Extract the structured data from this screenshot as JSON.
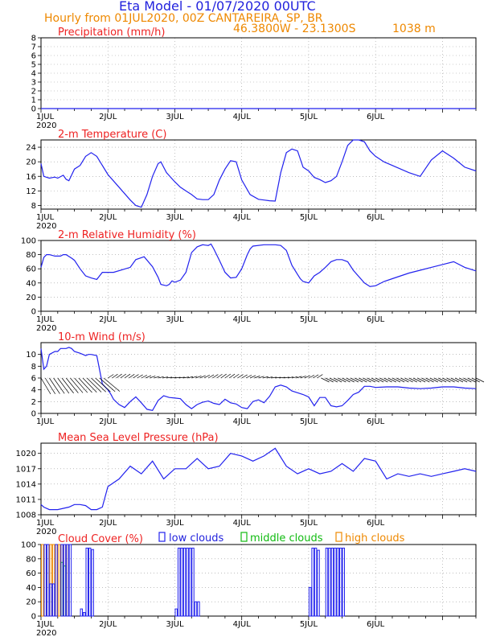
{
  "header": {
    "title": "Eta Model - 01/07/2020 00UTC",
    "subtitle": "Hourly from 01JUL2020, 00Z   CANTAREIRA, SP, BR",
    "coords": "46.3800W - 23.1300S",
    "elevation": "1038  m"
  },
  "x_axis": {
    "day_labels": [
      "1JUL",
      "2JUL",
      "3JUL",
      "4JUL",
      "5JUL",
      "6JUL"
    ],
    "year_label": "2020",
    "hours_total": 156
  },
  "colors": {
    "series": "#2222ee",
    "title": "#ee2222",
    "header_title": "#2222dd",
    "header_sub": "#ee8800",
    "low_clouds": "#2222ee",
    "middle_clouds": "#11bb11",
    "high_clouds": "#ee8800",
    "wind_barb": "#000000"
  },
  "chart_data": [
    {
      "id": "precip",
      "type": "line",
      "title": "Precipitation (mm/h)",
      "ylim": [
        0,
        8
      ],
      "yticks": [
        0,
        1,
        2,
        3,
        4,
        5,
        6,
        7,
        8
      ],
      "x": [
        0,
        156
      ],
      "y": [
        0,
        0
      ]
    },
    {
      "id": "temp",
      "type": "line",
      "title": "2-m Temperature (C)",
      "ylim": [
        7,
        26
      ],
      "yticks": [
        8,
        12,
        16,
        20,
        24
      ],
      "x": [
        0,
        1,
        3,
        5,
        6,
        8,
        9,
        10,
        12,
        14,
        16,
        18,
        20,
        24,
        28,
        32,
        34,
        36,
        38,
        40,
        42,
        43,
        45,
        48,
        50,
        52,
        54,
        56,
        58,
        60,
        62,
        64,
        66,
        68,
        70,
        72,
        75,
        78,
        80,
        82,
        84,
        86,
        88,
        90,
        92,
        94,
        96,
        98,
        100,
        102,
        104,
        106,
        108,
        110,
        112,
        114,
        116,
        118,
        120,
        123,
        126,
        129,
        132,
        136,
        140,
        144,
        148,
        152,
        156
      ],
      "y": [
        19.5,
        16,
        15.5,
        15.8,
        15.5,
        16.3,
        15.2,
        14.8,
        18,
        19,
        21.5,
        22.5,
        21.5,
        16.5,
        13,
        9.5,
        8,
        7.5,
        11,
        16,
        19.5,
        20,
        17,
        14.5,
        13,
        12,
        11,
        9.8,
        9.6,
        9.6,
        11,
        15,
        18,
        20.3,
        20,
        15,
        11,
        9.7,
        9.5,
        9.3,
        9.2,
        17,
        22.5,
        23.5,
        23,
        18.5,
        17.5,
        15.7,
        15.1,
        14.3,
        14.8,
        16,
        20,
        24.5,
        26,
        26,
        25.5,
        23,
        21.5,
        20,
        19,
        18,
        17,
        16,
        20.5,
        23,
        21,
        18.5,
        17.5
      ]
    },
    {
      "id": "rh",
      "type": "line",
      "title": "2-m Relative Humidity (%)",
      "ylim": [
        0,
        100
      ],
      "yticks": [
        0,
        20,
        40,
        60,
        80,
        100
      ],
      "x": [
        0,
        1,
        2,
        3,
        5,
        7,
        8,
        9,
        11,
        12,
        14,
        16,
        18,
        20,
        22,
        26,
        32,
        34,
        37,
        40,
        42,
        43,
        45,
        46,
        47,
        48,
        50,
        52,
        54,
        56,
        58,
        60,
        61,
        62,
        64,
        66,
        68,
        70,
        72,
        74,
        75,
        76,
        80,
        84,
        86,
        88,
        90,
        92,
        93,
        94,
        96,
        98,
        100,
        102,
        104,
        106,
        108,
        110,
        112,
        116,
        118,
        120,
        123,
        126,
        129,
        132,
        136,
        140,
        144,
        148,
        152,
        156
      ],
      "y": [
        62,
        76,
        80,
        80,
        78,
        78,
        80,
        80,
        75,
        72,
        60,
        50,
        47,
        45,
        55,
        55,
        62,
        73,
        77,
        63,
        48,
        38,
        36,
        38,
        43,
        41,
        44,
        55,
        83,
        91,
        94,
        93,
        95,
        88,
        72,
        55,
        47,
        48,
        60,
        80,
        88,
        92,
        94,
        94,
        93,
        86,
        65,
        52,
        46,
        42,
        40,
        50,
        55,
        62,
        70,
        73,
        73,
        70,
        58,
        40,
        35,
        36,
        42,
        46,
        50,
        54,
        58,
        62,
        66,
        70,
        62,
        57
      ]
    },
    {
      "id": "wind",
      "type": "line",
      "title": "10-m Wind (m/s)",
      "ylim": [
        0,
        12
      ],
      "yticks": [
        0,
        2,
        4,
        6,
        8,
        10
      ],
      "x": [
        0,
        1,
        2,
        3,
        5,
        6,
        7,
        8,
        9,
        10,
        11,
        12,
        14,
        16,
        17,
        18,
        20,
        22,
        24,
        25,
        26,
        28,
        30,
        32,
        34,
        36,
        38,
        40,
        42,
        44,
        46,
        48,
        50,
        52,
        54,
        56,
        58,
        60,
        62,
        64,
        66,
        68,
        70,
        72,
        74,
        76,
        78,
        80,
        82,
        84,
        86,
        88,
        90,
        92,
        94,
        96,
        98,
        100,
        102,
        104,
        106,
        108,
        110,
        112,
        114,
        116,
        118,
        120,
        124,
        128,
        132,
        136,
        140,
        144,
        148,
        152,
        156
      ],
      "y": [
        11,
        7.5,
        8,
        10,
        10.5,
        10.5,
        11,
        11,
        11,
        11.2,
        11,
        10.5,
        10.2,
        9.8,
        10,
        10,
        9.8,
        5,
        4,
        3.3,
        2.4,
        1.5,
        1.0,
        2.0,
        2.8,
        1.8,
        0.7,
        0.5,
        2.2,
        3.0,
        2.7,
        2.6,
        2.5,
        1.5,
        0.8,
        1.5,
        1.9,
        2.1,
        1.7,
        1.5,
        2.4,
        1.8,
        1.6,
        1.0,
        0.8,
        2.0,
        2.3,
        1.8,
        2.9,
        4.5,
        4.8,
        4.5,
        3.8,
        3.5,
        3.2,
        2.8,
        1.3,
        2.7,
        2.7,
        1.3,
        1.1,
        1.3,
        2.2,
        3.2,
        3.6,
        4.6,
        4.6,
        4.4,
        4.5,
        4.5,
        4.3,
        4.2,
        4.3,
        4.5,
        4.5,
        4.3,
        4.2
      ]
    },
    {
      "id": "mslp",
      "type": "line",
      "title": "Mean Sea Level Pressure (hPa)",
      "ylim": [
        1008,
        1022
      ],
      "yticks": [
        1008,
        1011,
        1014,
        1017,
        1020
      ],
      "x": [
        0,
        1,
        3,
        6,
        10,
        12,
        14,
        16,
        18,
        20,
        22,
        24,
        28,
        32,
        36,
        40,
        44,
        48,
        52,
        56,
        60,
        64,
        68,
        72,
        76,
        80,
        84,
        88,
        92,
        96,
        100,
        104,
        108,
        112,
        116,
        120,
        124,
        128,
        132,
        136,
        140,
        144,
        148,
        152,
        156
      ],
      "y": [
        1010,
        1009.5,
        1009,
        1009,
        1009.5,
        1010,
        1010,
        1009.8,
        1009,
        1009,
        1009.5,
        1013.5,
        1015,
        1017.5,
        1016,
        1018.5,
        1015,
        1017,
        1017,
        1019,
        1017,
        1017.5,
        1020,
        1019.5,
        1018.5,
        1019.5,
        1021,
        1017.5,
        1016,
        1017,
        1016,
        1016.5,
        1018,
        1016.5,
        1019,
        1018.5,
        1015,
        1016,
        1015.5,
        1016,
        1015.5,
        1016,
        1016.5,
        1017,
        1016.5
      ]
    },
    {
      "id": "cloud",
      "type": "bar",
      "title": "Cloud Cover (%)",
      "ylim": [
        0,
        100
      ],
      "yticks": [
        0,
        20,
        40,
        60,
        80,
        100
      ],
      "legend": [
        "low clouds",
        "middle clouds",
        "high clouds"
      ],
      "low": [
        [
          1,
          100
        ],
        [
          2,
          100
        ],
        [
          3,
          45
        ],
        [
          4,
          45
        ],
        [
          5,
          100
        ],
        [
          7,
          100
        ],
        [
          8,
          100
        ],
        [
          9,
          100
        ],
        [
          10,
          100
        ],
        [
          14,
          10
        ],
        [
          15,
          5
        ],
        [
          16,
          95
        ],
        [
          17,
          95
        ],
        [
          18,
          93
        ],
        [
          48,
          10
        ],
        [
          49,
          95
        ],
        [
          50,
          95
        ],
        [
          51,
          95
        ],
        [
          52,
          95
        ],
        [
          53,
          95
        ],
        [
          54,
          95
        ],
        [
          55,
          20
        ],
        [
          56,
          20
        ],
        [
          96,
          40
        ],
        [
          97,
          95
        ],
        [
          98,
          95
        ],
        [
          99,
          92
        ],
        [
          102,
          95
        ],
        [
          103,
          95
        ],
        [
          104,
          95
        ],
        [
          105,
          95
        ],
        [
          106,
          95
        ],
        [
          107,
          95
        ],
        [
          108,
          95
        ]
      ],
      "middle": [
        [
          7,
          75
        ],
        [
          8,
          70
        ]
      ],
      "high": [
        [
          0,
          100
        ],
        [
          1,
          100
        ],
        [
          2,
          100
        ],
        [
          3,
          100
        ],
        [
          4,
          100
        ],
        [
          5,
          100
        ],
        [
          6,
          100
        ],
        [
          7,
          100
        ],
        [
          8,
          100
        ],
        [
          9,
          100
        ]
      ]
    }
  ]
}
